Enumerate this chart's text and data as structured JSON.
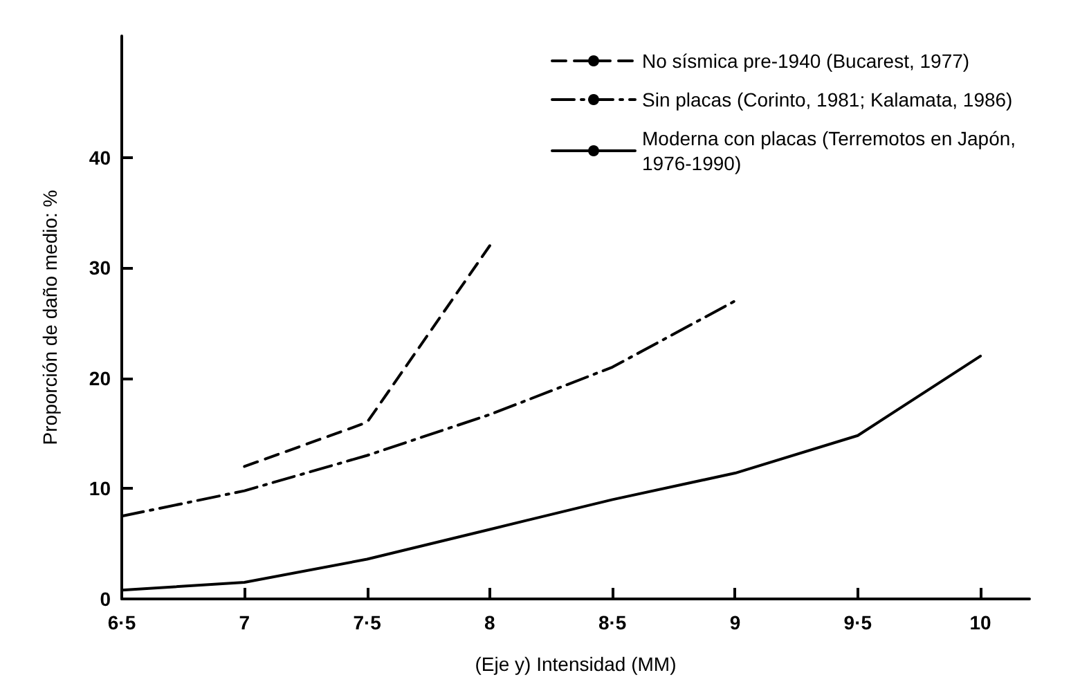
{
  "chart_data": {
    "type": "line",
    "xlabel": "(Eje y) Intensidad (MM)",
    "ylabel": "Proporción de daño medio: %",
    "xlim": [
      6.5,
      10.2
    ],
    "ylim": [
      0,
      51
    ],
    "xticks": [
      {
        "value": 6.5,
        "label": "6·5"
      },
      7,
      {
        "value": 7.5,
        "label": "7·5"
      },
      8,
      {
        "value": 8.5,
        "label": "8·5"
      },
      9,
      {
        "value": 9.5,
        "label": "9·5"
      },
      10
    ],
    "yticks": [
      0,
      10,
      20,
      30,
      40
    ],
    "grid": false,
    "legend": "top right",
    "marker": "none",
    "series": [
      {
        "name": "No sísmica pre-1940 (Bucarest, 1977)",
        "color": "#000000",
        "line_style": "dashed",
        "x": [
          7,
          7.5,
          8
        ],
        "values": [
          12,
          16,
          32
        ]
      },
      {
        "name": "Sin placas (Corinto, 1981; Kalamata, 1986)",
        "color": "#000000",
        "line_style": "dashdot",
        "x": [
          6.5,
          7,
          7.5,
          8,
          8.5,
          9
        ],
        "values": [
          7.5,
          9.8,
          13,
          16.7,
          21,
          27
        ]
      },
      {
        "name": "Moderna con placas (Terremotos en Japón, 1976-1990)",
        "color": "#000000",
        "line_style": "solid",
        "x": [
          6.5,
          7,
          7.5,
          8,
          8.5,
          9,
          9.5,
          10
        ],
        "values": [
          0.8,
          1.5,
          3.6,
          6.3,
          9,
          11.4,
          14.8,
          22
        ]
      }
    ]
  }
}
